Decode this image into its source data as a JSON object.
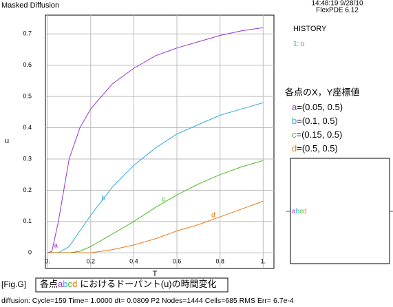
{
  "chart_data": {
    "type": "line",
    "title": "Masked Diffusion",
    "timestamp": "14:48:19 9/28/10",
    "software": "FlexPDE 6.12",
    "history_title": "HISTORY",
    "history_entry": "1: u",
    "legend_title": "各点のX，Y座標値",
    "x_label": "T",
    "y_label": "u",
    "fig_label": "[Fig.G]",
    "caption": {
      "prefix": "各点",
      "suffix": "におけるドーパント(u)の時間変化"
    },
    "status": "diffusion:  Cycle=159  Time= 1.0000  dt= 0.0809  P2  Nodes=1444 Cells=685 RMS Err= 6.7e-4",
    "x": [
      0,
      0.02,
      0.05,
      0.1,
      0.15,
      0.2,
      0.3,
      0.4,
      0.5,
      0.6,
      0.7,
      0.8,
      0.9,
      1
    ],
    "series": [
      {
        "name": "a",
        "location": "=(0.05, 0.5)",
        "color": "#9933cc",
        "values": [
          0,
          0.005,
          0.1,
          0.3,
          0.4,
          0.46,
          0.54,
          0.59,
          0.63,
          0.655,
          0.675,
          0.695,
          0.71,
          0.72
        ]
      },
      {
        "name": "b",
        "location": "=(0.1, 0.5)",
        "color": "#33aadd",
        "values": [
          0,
          0,
          0,
          0.02,
          0.07,
          0.12,
          0.21,
          0.28,
          0.335,
          0.38,
          0.41,
          0.44,
          0.46,
          0.48
        ]
      },
      {
        "name": "c",
        "location": "=(0.15, 0.5)",
        "color": "#44bb22",
        "values": [
          0,
          0,
          0,
          0,
          0.005,
          0.02,
          0.06,
          0.1,
          0.145,
          0.185,
          0.22,
          0.25,
          0.275,
          0.295
        ]
      },
      {
        "name": "d",
        "location": "=(0.5, 0.5)",
        "color": "#ee7711",
        "values": [
          0,
          0,
          0,
          0,
          0,
          0,
          0.01,
          0.025,
          0.045,
          0.07,
          0.09,
          0.115,
          0.14,
          0.165
        ]
      }
    ],
    "label_x": [
      0.02,
      0.24,
      0.52,
      0.75
    ],
    "xlim": [
      -0.01,
      1.05
    ],
    "ylim": [
      -0.05,
      0.76
    ],
    "xticks": [
      {
        "value": 0,
        "label": "0."
      },
      0.2,
      0.4,
      0.6,
      0.8,
      {
        "value": 1,
        "label": "1."
      }
    ],
    "yticks": [
      0,
      0.1,
      0.2,
      0.3,
      0.4,
      0.5,
      0.6,
      0.7
    ],
    "grid": true
  }
}
